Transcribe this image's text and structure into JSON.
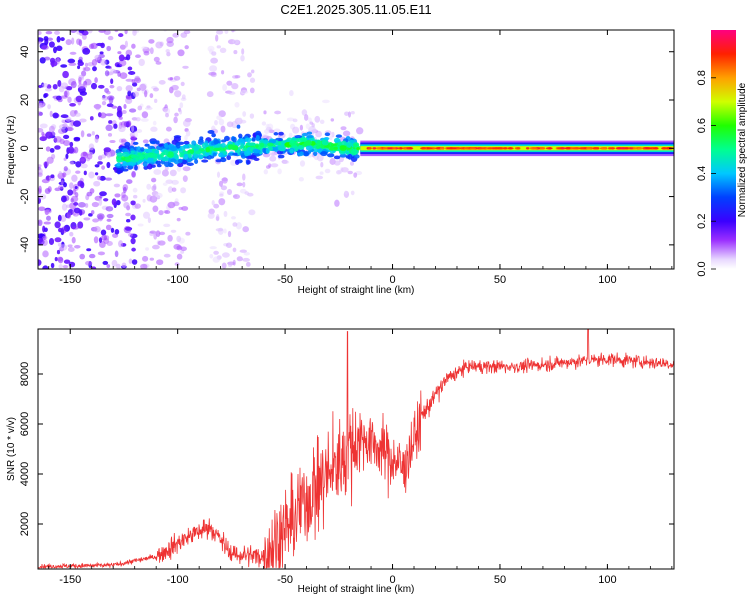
{
  "title": "C2E1.2025.305.11.05.E11",
  "chart_data": [
    {
      "type": "heatmap",
      "xlabel": "Height of straight line (km)",
      "ylabel": "Frequency (Hz)",
      "xlim": [
        -165,
        131
      ],
      "ylim": [
        -50,
        49
      ],
      "xticks": [
        -150,
        -100,
        -50,
        0,
        50,
        100
      ],
      "yticks": [
        -40,
        -20,
        0,
        20,
        40
      ],
      "colorbar": {
        "label": "Normalized spectral amplitude",
        "range": [
          0.0,
          1.0
        ],
        "ticks": [
          0.0,
          0.2,
          0.4,
          0.6,
          0.8
        ],
        "tick_labels": [
          "0.0",
          "0.2",
          "0.4",
          "0.6",
          "0.8"
        ]
      },
      "ridge": {
        "description_points": [
          {
            "x": -125,
            "y": -4,
            "amp": 0.45
          },
          {
            "x": -100,
            "y": -2,
            "amp": 0.45
          },
          {
            "x": -80,
            "y": 0,
            "amp": 0.45
          },
          {
            "x": -60,
            "y": 1,
            "amp": 0.45
          },
          {
            "x": -40,
            "y": 2,
            "amp": 0.5
          },
          {
            "x": -20,
            "y": 0,
            "amp": 0.7
          },
          {
            "x": 0,
            "y": 0,
            "amp": 0.85
          },
          {
            "x": 50,
            "y": 0,
            "amp": 0.9
          },
          {
            "x": 131,
            "y": 0,
            "amp": 0.95
          }
        ]
      }
    },
    {
      "type": "line",
      "xlabel": "Height of straight line (km)",
      "ylabel": "SNR (10 * v/v)",
      "xlim": [
        -165,
        131
      ],
      "ylim": [
        200,
        9800
      ],
      "xticks": [
        -150,
        -100,
        -50,
        0,
        50,
        100
      ],
      "yticks": [
        2000,
        4000,
        6000,
        8000
      ],
      "color": "#ee3333",
      "envelope": [
        {
          "x": -165,
          "y": 300
        },
        {
          "x": -130,
          "y": 350
        },
        {
          "x": -110,
          "y": 700
        },
        {
          "x": -95,
          "y": 1500
        },
        {
          "x": -85,
          "y": 1900
        },
        {
          "x": -75,
          "y": 800
        },
        {
          "x": -60,
          "y": 700
        },
        {
          "x": -50,
          "y": 1700
        },
        {
          "x": -40,
          "y": 3000
        },
        {
          "x": -25,
          "y": 4500
        },
        {
          "x": -15,
          "y": 5500
        },
        {
          "x": -5,
          "y": 5000
        },
        {
          "x": 5,
          "y": 4200
        },
        {
          "x": 15,
          "y": 6500
        },
        {
          "x": 25,
          "y": 7800
        },
        {
          "x": 35,
          "y": 8300
        },
        {
          "x": 60,
          "y": 8300
        },
        {
          "x": 85,
          "y": 8500
        },
        {
          "x": 100,
          "y": 8600
        },
        {
          "x": 131,
          "y": 8400
        }
      ],
      "peaks": [
        {
          "x": -21,
          "y": 9700
        },
        {
          "x": 91,
          "y": 9800
        }
      ]
    }
  ]
}
